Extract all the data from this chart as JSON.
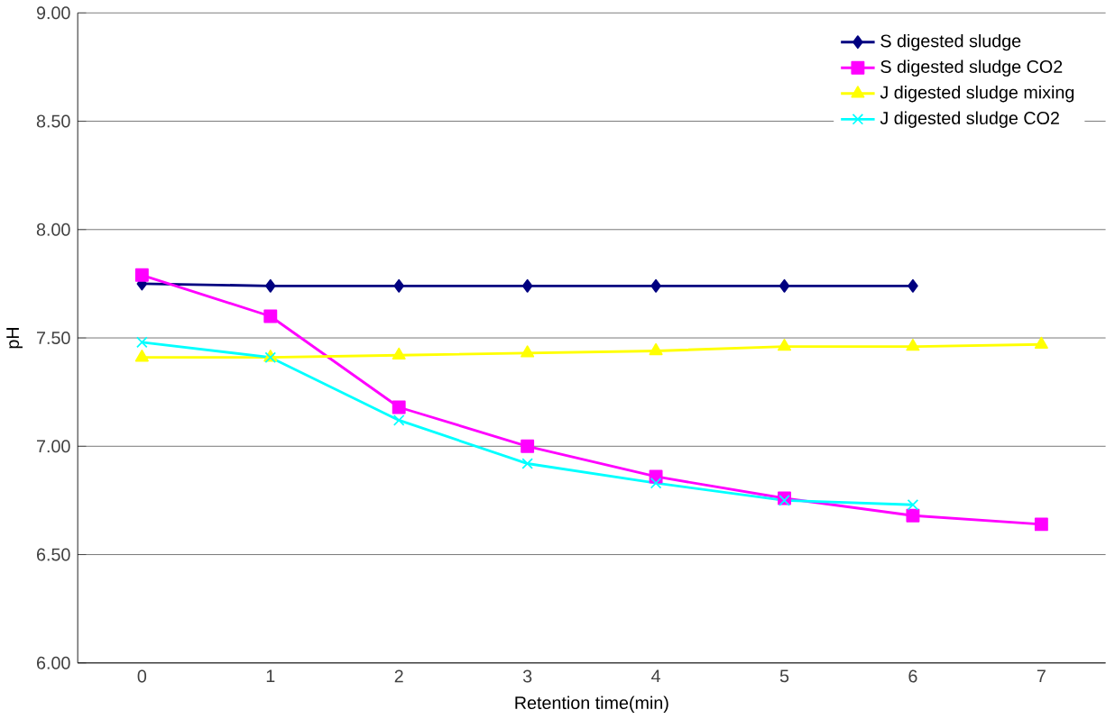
{
  "chart_data": {
    "type": "line",
    "xlabel": "Retention time(min)",
    "ylabel": "pH",
    "categories": [
      "0",
      "1",
      "2",
      "3",
      "4",
      "5",
      "6",
      "7"
    ],
    "ylim": [
      6.0,
      9.0
    ],
    "yticks": [
      {
        "value": 6.0,
        "label": "6.00"
      },
      {
        "value": 6.5,
        "label": "6.50"
      },
      {
        "value": 7.0,
        "label": "7.00"
      },
      {
        "value": 7.5,
        "label": "7.50"
      },
      {
        "value": 8.0,
        "label": "8.00"
      },
      {
        "value": 8.5,
        "label": "8.50"
      },
      {
        "value": 9.0,
        "label": "9.00"
      }
    ],
    "grid": "y",
    "legend": "top right",
    "series": [
      {
        "name": "S digested sludge",
        "color": "#000080",
        "marker": "diamond",
        "values": [
          7.75,
          7.74,
          7.74,
          7.74,
          7.74,
          7.74,
          7.74,
          null
        ]
      },
      {
        "name": "S digested sludge CO2",
        "color": "#ff00ff",
        "marker": "square",
        "values": [
          7.79,
          7.6,
          7.18,
          7.0,
          6.86,
          6.76,
          6.68,
          6.64
        ]
      },
      {
        "name": "J digested sludge mixing",
        "color": "#ffff00",
        "marker": "triangle",
        "values": [
          7.41,
          7.41,
          7.42,
          7.43,
          7.44,
          7.46,
          7.46,
          7.47
        ]
      },
      {
        "name": "J digested sludge CO2",
        "color": "#00ffff",
        "marker": "cross",
        "values": [
          7.48,
          7.41,
          7.12,
          6.92,
          6.83,
          6.75,
          6.73,
          null
        ]
      }
    ]
  }
}
